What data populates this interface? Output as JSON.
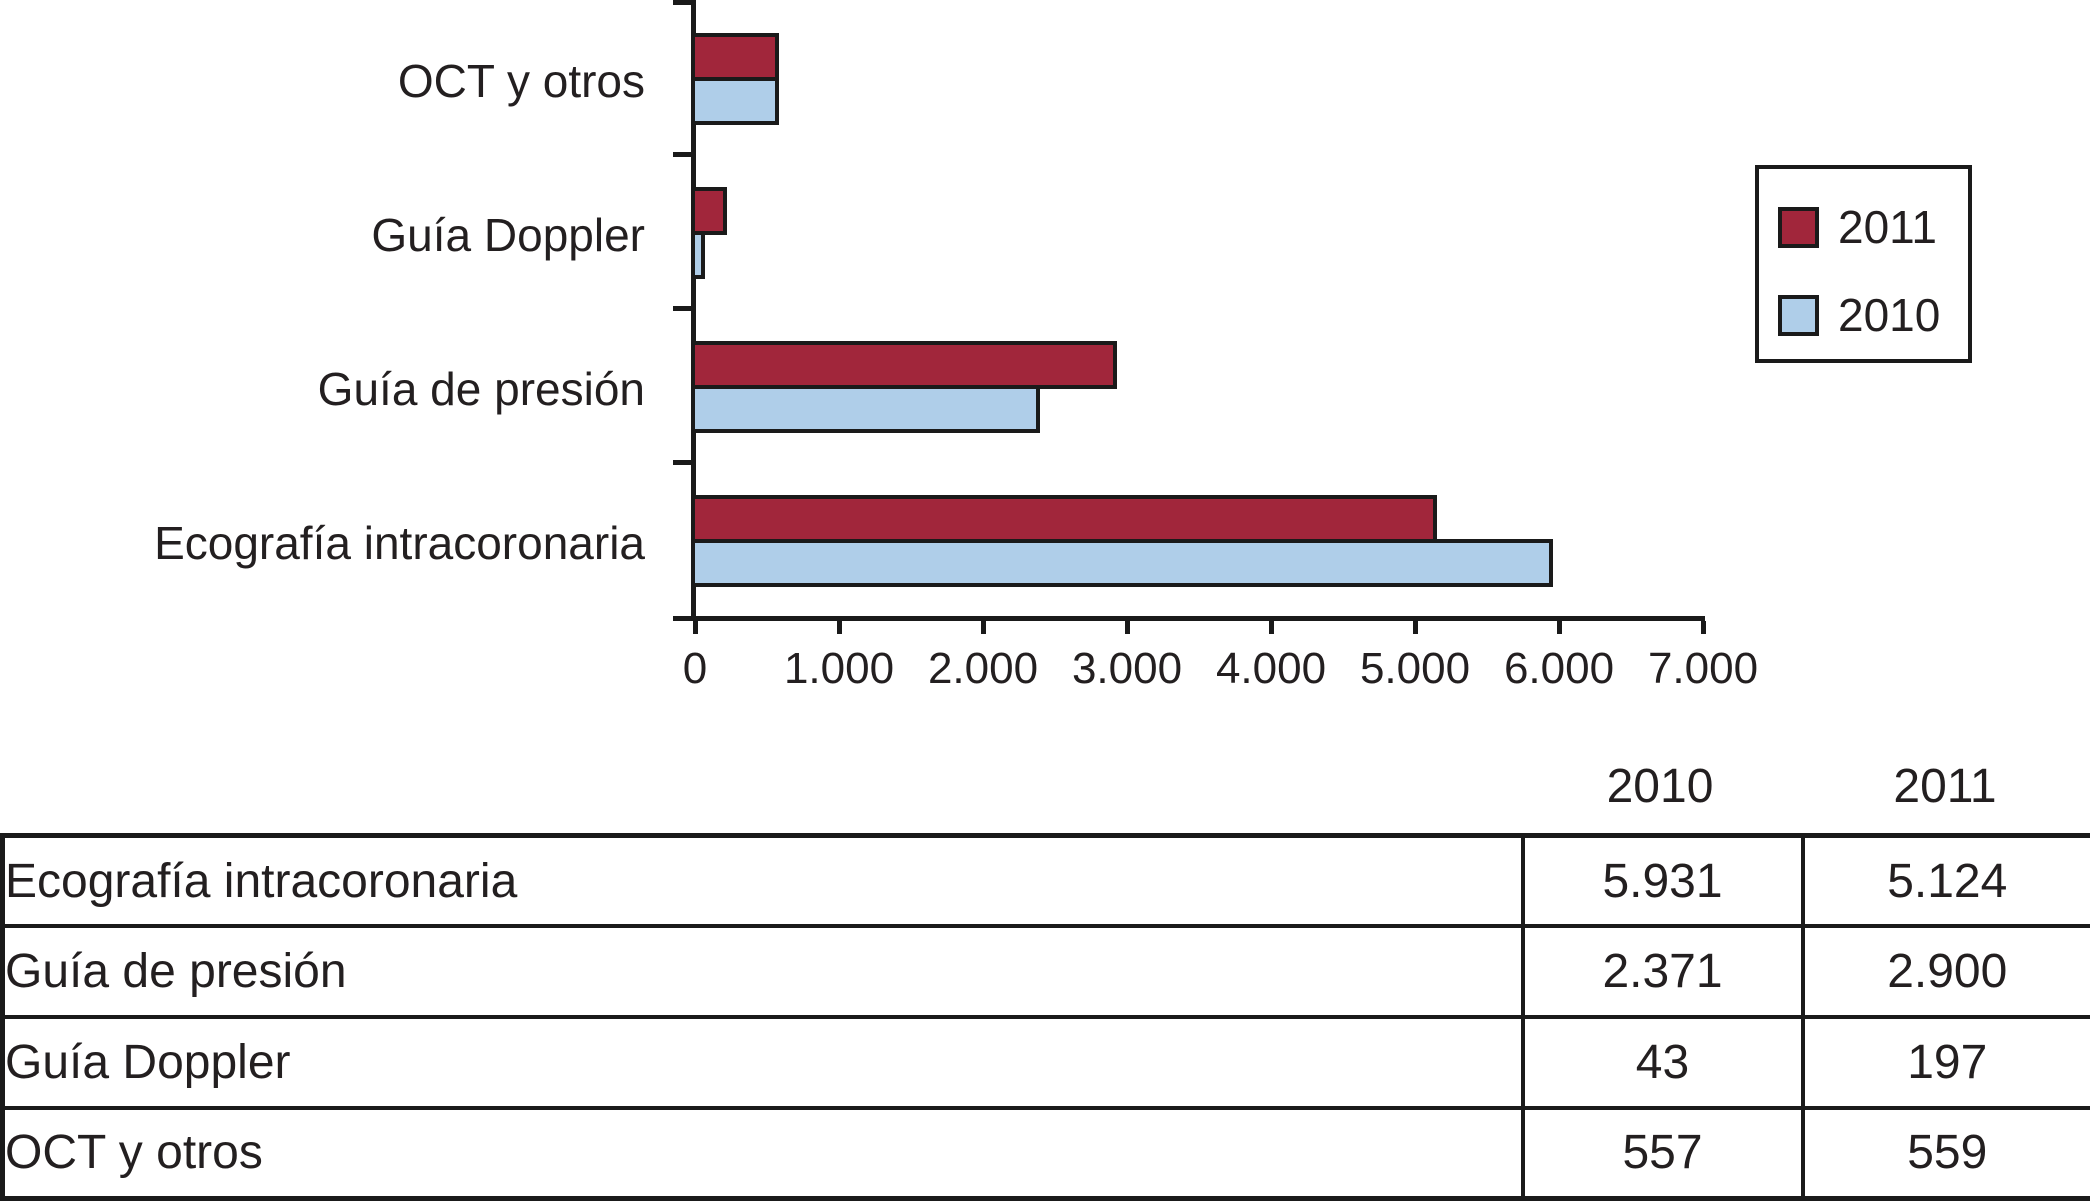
{
  "colors": {
    "series_2011": "#a1263b",
    "series_2010": "#afcee9",
    "line": "#1a1a1a",
    "text": "#231f20"
  },
  "chart_data": {
    "type": "bar",
    "orientation": "horizontal",
    "categories": [
      "OCT y otros",
      "Guía Doppler",
      "Guía de presión",
      "Ecografía intracoronaria"
    ],
    "series": [
      {
        "name": "2011",
        "color": "#a1263b",
        "values": [
          559,
          197,
          2900,
          5124
        ]
      },
      {
        "name": "2010",
        "color": "#afcee9",
        "values": [
          557,
          43,
          2371,
          5931
        ]
      }
    ],
    "xlim": [
      0,
      7000
    ],
    "xtick_values": [
      0,
      1000,
      2000,
      3000,
      4000,
      5000,
      6000,
      7000
    ],
    "xtick_labels": [
      "0",
      "1.000",
      "2.000",
      "3.000",
      "4.000",
      "5.000",
      "6.000",
      "7.000"
    ],
    "title": "",
    "xlabel": "",
    "ylabel": "",
    "grid": false,
    "legend_position": "right",
    "legend_entries": [
      "2011",
      "2010"
    ]
  },
  "table": {
    "columns": [
      "",
      "2010",
      "2011"
    ],
    "rows": [
      {
        "label": "Ecografía intracoronaria",
        "values": [
          "5.931",
          "5.124"
        ]
      },
      {
        "label": "Guía de presión",
        "values": [
          "2.371",
          "2.900"
        ]
      },
      {
        "label": "Guía Doppler",
        "values": [
          "43",
          "197"
        ]
      },
      {
        "label": "OCT y otros",
        "values": [
          "557",
          "559"
        ]
      }
    ]
  }
}
